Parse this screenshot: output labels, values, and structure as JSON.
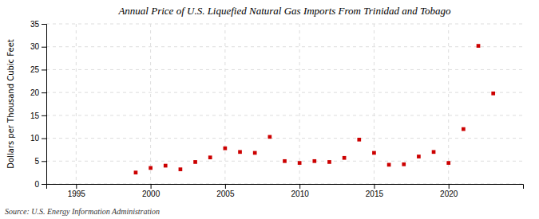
{
  "chart_data": {
    "type": "scatter",
    "title": "Annual Price of U.S. Liquefied Natural Gas Imports From Trinidad and Tobago",
    "ylabel": "Dollars per Thousand Cubic Feet",
    "source": "Source: U.S. Energy Information Administration",
    "x": [
      1999,
      2000,
      2001,
      2002,
      2003,
      2004,
      2005,
      2006,
      2007,
      2008,
      2009,
      2010,
      2011,
      2012,
      2013,
      2014,
      2015,
      2016,
      2017,
      2018,
      2019,
      2020,
      2021,
      2022,
      2023
    ],
    "values": [
      2.5,
      3.5,
      4.0,
      3.2,
      4.8,
      5.8,
      7.8,
      7.0,
      6.8,
      10.3,
      5.0,
      4.6,
      5.0,
      4.8,
      5.7,
      9.7,
      6.8,
      4.2,
      4.3,
      6.0,
      7.0,
      4.6,
      12.0,
      30.2,
      19.8
    ],
    "color": "#cc0000",
    "marker": "square",
    "xlim": [
      1993,
      2025
    ],
    "ylim": [
      0,
      35
    ],
    "xticks": [
      1995,
      2000,
      2005,
      2010,
      2015,
      2020
    ],
    "yticks": [
      0,
      5,
      10,
      15,
      20,
      25,
      30,
      35
    ],
    "grid": true
  }
}
